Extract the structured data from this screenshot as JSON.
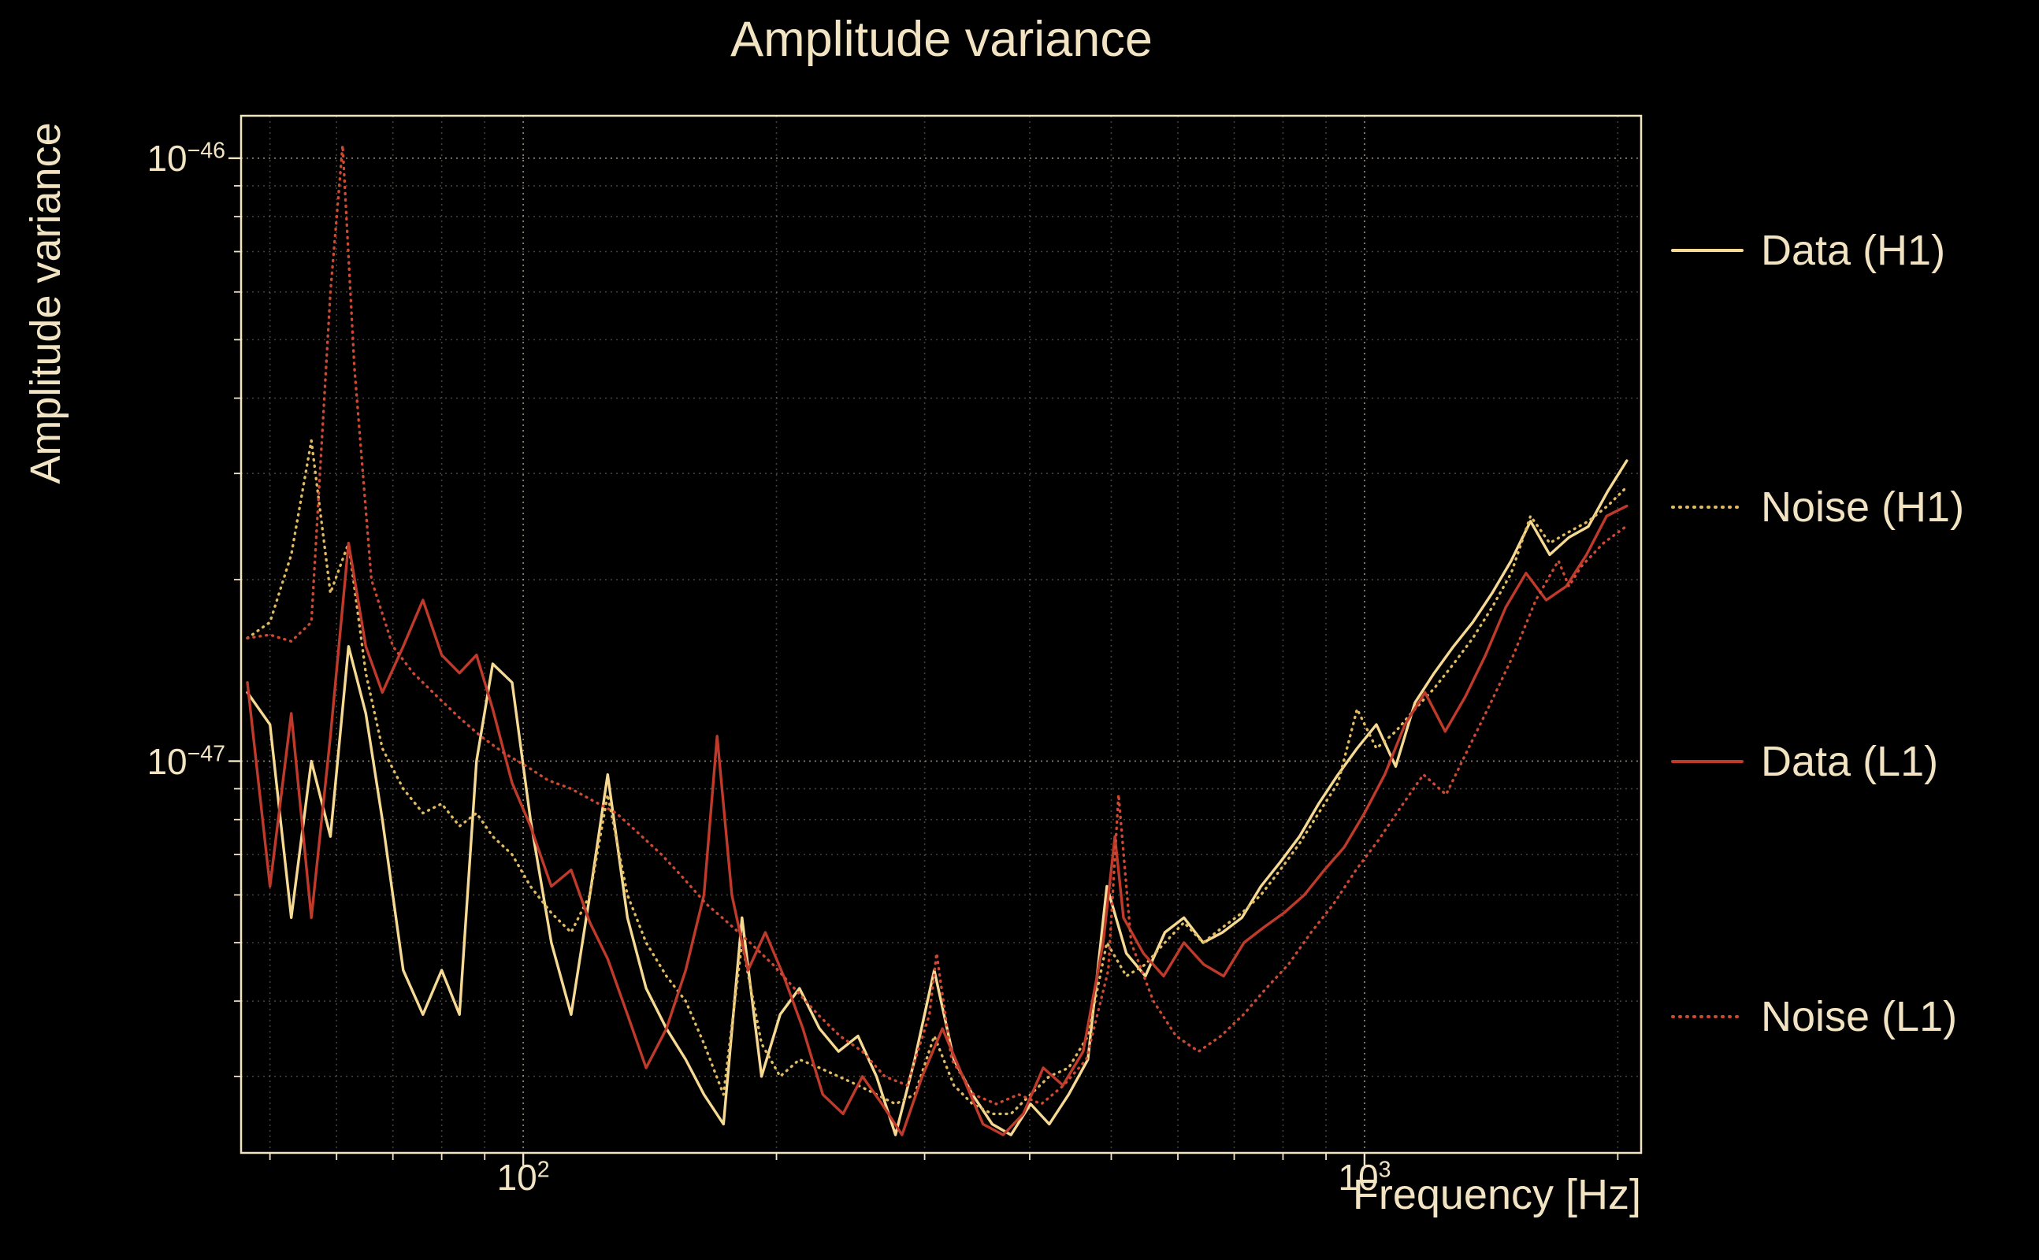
{
  "chart_data": {
    "type": "line",
    "title": "Amplitude variance",
    "xlabel": "Frequency [Hz]",
    "ylabel": "Amplitude variance",
    "x_scale": "log",
    "y_scale": "log",
    "grid": true,
    "legend_position": "right",
    "xlim": [
      46.2,
      2132
    ],
    "y_unit": "1e-47",
    "ylim_units": [
      0.224,
      11.76
    ],
    "x_ticks_major": [
      {
        "value": 100,
        "base": "10",
        "exp": "2"
      },
      {
        "value": 1000,
        "base": "10",
        "exp": "3"
      }
    ],
    "x_gridlines_minor": [
      50,
      60,
      70,
      80,
      90,
      200,
      300,
      400,
      500,
      600,
      700,
      800,
      900,
      2000
    ],
    "y_ticks_major": [
      {
        "value_units": 10,
        "base": "10",
        "exp": "−46"
      },
      {
        "value_units": 1,
        "base": "10",
        "exp": "−47"
      }
    ],
    "y_gridlines_minor_units": [
      9,
      8,
      7,
      6,
      5,
      4,
      3,
      2,
      0.9,
      0.8,
      0.7,
      0.6,
      0.5,
      0.4,
      0.3
    ],
    "colors": {
      "background": "#000000",
      "text": "#f2e4c2",
      "grid": "#f5e9cf",
      "h1": "#f2cf85",
      "l1": "#c0392b"
    },
    "series": [
      {
        "id": "data-h1",
        "name": "Data (H1)",
        "color": "#f6d992",
        "line_style": "solid",
        "x": [
          47,
          50,
          53,
          56,
          59,
          62,
          65,
          68,
          72,
          76,
          80,
          84,
          88,
          92,
          97,
          102,
          108,
          114,
          120,
          126,
          133,
          140,
          148,
          156,
          164,
          173,
          182,
          192,
          202,
          213,
          225,
          237,
          250,
          263,
          277,
          292,
          308,
          325,
          342,
          361,
          380,
          401,
          422,
          445,
          469,
          494,
          521,
          549,
          579,
          610,
          643,
          678,
          715,
          753,
          794,
          837,
          882,
          930,
          980,
          1033,
          1089,
          1148,
          1210,
          1276,
          1345,
          1418,
          1494,
          1575,
          1660,
          1750,
          1845,
          1945,
          2050
        ],
        "y_units": [
          1.3,
          1.15,
          0.55,
          1.0,
          0.75,
          1.55,
          1.2,
          0.8,
          0.45,
          0.38,
          0.45,
          0.38,
          1.0,
          1.45,
          1.35,
          0.8,
          0.5,
          0.38,
          0.6,
          0.95,
          0.55,
          0.42,
          0.36,
          0.32,
          0.28,
          0.25,
          0.55,
          0.3,
          0.38,
          0.42,
          0.36,
          0.33,
          0.35,
          0.3,
          0.24,
          0.32,
          0.45,
          0.32,
          0.28,
          0.25,
          0.24,
          0.27,
          0.25,
          0.28,
          0.32,
          0.62,
          0.48,
          0.44,
          0.52,
          0.55,
          0.5,
          0.52,
          0.55,
          0.62,
          0.68,
          0.75,
          0.85,
          0.95,
          1.05,
          1.15,
          0.98,
          1.25,
          1.4,
          1.55,
          1.7,
          1.9,
          2.15,
          2.5,
          2.2,
          2.35,
          2.45,
          2.8,
          3.15
        ]
      },
      {
        "id": "noise-h1",
        "name": "Noise (H1)",
        "color": "#dfba62",
        "line_style": "dotted",
        "x": [
          47,
          50,
          53,
          56,
          59,
          62,
          65,
          68,
          72,
          76,
          80,
          84,
          88,
          92,
          97,
          102,
          108,
          114,
          120,
          126,
          133,
          140,
          148,
          156,
          164,
          173,
          182,
          192,
          202,
          213,
          225,
          237,
          250,
          263,
          277,
          292,
          308,
          325,
          342,
          361,
          380,
          401,
          422,
          445,
          469,
          494,
          521,
          549,
          579,
          610,
          643,
          678,
          715,
          753,
          794,
          837,
          882,
          930,
          980,
          1033,
          1089,
          1148,
          1210,
          1276,
          1345,
          1418,
          1494,
          1575,
          1660,
          1750,
          1845,
          1945,
          2050
        ],
        "y_units": [
          1.6,
          1.7,
          2.2,
          3.4,
          1.9,
          2.3,
          1.4,
          1.05,
          0.9,
          0.82,
          0.85,
          0.78,
          0.82,
          0.75,
          0.7,
          0.62,
          0.56,
          0.52,
          0.6,
          0.88,
          0.6,
          0.5,
          0.44,
          0.4,
          0.34,
          0.28,
          0.5,
          0.34,
          0.3,
          0.32,
          0.31,
          0.3,
          0.29,
          0.28,
          0.27,
          0.28,
          0.35,
          0.29,
          0.27,
          0.26,
          0.26,
          0.28,
          0.3,
          0.31,
          0.35,
          0.5,
          0.44,
          0.46,
          0.5,
          0.54,
          0.5,
          0.53,
          0.56,
          0.6,
          0.66,
          0.73,
          0.82,
          0.92,
          1.22,
          1.05,
          1.12,
          1.22,
          1.32,
          1.45,
          1.6,
          1.8,
          2.05,
          2.55,
          2.3,
          2.4,
          2.5,
          2.65,
          2.85
        ]
      },
      {
        "id": "data-l1",
        "name": "Data (L1)",
        "color": "#bf3a2b",
        "line_style": "solid",
        "x": [
          47,
          50,
          53,
          56,
          59,
          62,
          65,
          68,
          72,
          76,
          80,
          84,
          88,
          92,
          97,
          102,
          108,
          114,
          120,
          126,
          133,
          140,
          148,
          156,
          164,
          170,
          177,
          185,
          194,
          204,
          215,
          227,
          240,
          253,
          267,
          282,
          298,
          315,
          333,
          352,
          372,
          393,
          415,
          438,
          463,
          489,
          505,
          517,
          546,
          577,
          610,
          644,
          680,
          719,
          759,
          802,
          848,
          896,
          946,
          1000,
          1057,
          1117,
          1180,
          1247,
          1318,
          1393,
          1472,
          1556,
          1644,
          1737,
          1836,
          1940,
          2050
        ],
        "y_units": [
          1.35,
          0.62,
          1.2,
          0.55,
          1.1,
          2.3,
          1.55,
          1.3,
          1.55,
          1.85,
          1.5,
          1.4,
          1.5,
          1.22,
          0.92,
          0.78,
          0.62,
          0.66,
          0.54,
          0.47,
          0.38,
          0.31,
          0.36,
          0.45,
          0.6,
          1.1,
          0.6,
          0.45,
          0.52,
          0.44,
          0.36,
          0.28,
          0.26,
          0.3,
          0.27,
          0.24,
          0.3,
          0.36,
          0.3,
          0.25,
          0.24,
          0.26,
          0.31,
          0.29,
          0.33,
          0.5,
          0.75,
          0.55,
          0.48,
          0.44,
          0.5,
          0.46,
          0.44,
          0.5,
          0.53,
          0.56,
          0.6,
          0.66,
          0.72,
          0.82,
          0.95,
          1.15,
          1.3,
          1.12,
          1.28,
          1.5,
          1.8,
          2.05,
          1.85,
          1.95,
          2.2,
          2.55,
          2.65
        ]
      },
      {
        "id": "noise-l1",
        "name": "Noise (L1)",
        "color": "#cc4a33",
        "line_style": "dotted",
        "x": [
          47,
          50,
          53,
          56,
          59,
          61,
          63,
          66,
          70,
          74,
          79,
          84,
          89,
          95,
          101,
          107,
          114,
          121,
          129,
          137,
          146,
          155,
          165,
          175,
          186,
          198,
          210,
          224,
          238,
          253,
          269,
          286,
          304,
          310,
          323,
          343,
          365,
          388,
          413,
          439,
          467,
          496,
          510,
          528,
          561,
          597,
          635,
          675,
          718,
          764,
          812,
          864,
          919,
          977,
          1039,
          1105,
          1175,
          1250,
          1329,
          1413,
          1503,
          1598,
          1700,
          1750,
          1808,
          1923,
          2045
        ],
        "y_units": [
          1.6,
          1.62,
          1.58,
          1.7,
          6.0,
          10.5,
          4.5,
          2.0,
          1.55,
          1.4,
          1.28,
          1.18,
          1.1,
          1.03,
          0.98,
          0.93,
          0.9,
          0.86,
          0.82,
          0.76,
          0.7,
          0.64,
          0.58,
          0.54,
          0.5,
          0.46,
          0.42,
          0.38,
          0.35,
          0.33,
          0.3,
          0.29,
          0.38,
          0.48,
          0.32,
          0.28,
          0.27,
          0.28,
          0.27,
          0.29,
          0.32,
          0.45,
          0.88,
          0.5,
          0.4,
          0.35,
          0.33,
          0.35,
          0.38,
          0.42,
          0.46,
          0.52,
          0.58,
          0.66,
          0.74,
          0.84,
          0.95,
          0.88,
          1.05,
          1.25,
          1.5,
          1.85,
          2.15,
          1.95,
          2.1,
          2.3,
          2.45
        ]
      }
    ]
  }
}
